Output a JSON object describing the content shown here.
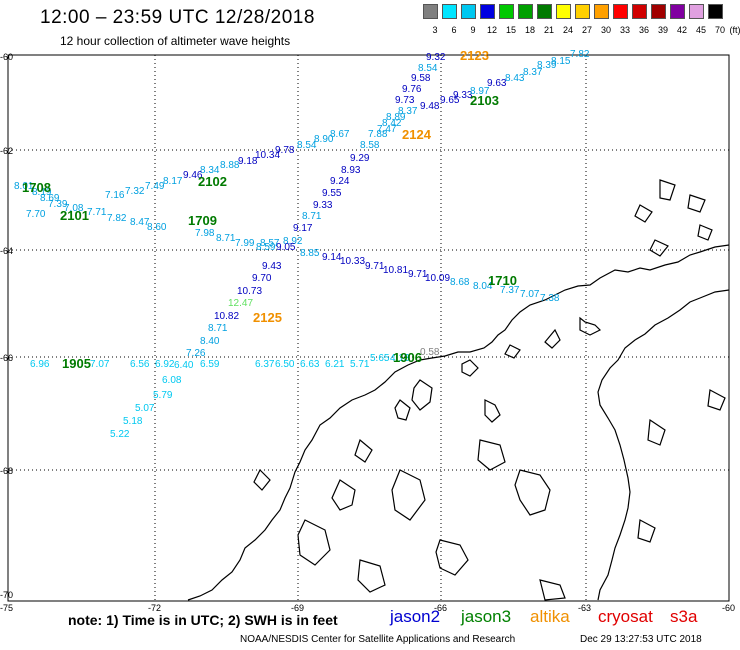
{
  "header": {
    "title": "12:00 – 23:59 UTC 12/28/2018",
    "subtitle": "12 hour collection of altimeter wave heights"
  },
  "color_scale": {
    "labels": [
      "3",
      "6",
      "9",
      "12",
      "15",
      "18",
      "21",
      "24",
      "27",
      "30",
      "33",
      "36",
      "39",
      "42",
      "45",
      "70"
    ],
    "unit": "(ft)",
    "colors": [
      "#808080",
      "#00e5ff",
      "#00c8f0",
      "#0000e0",
      "#00c800",
      "#00a000",
      "#007a00",
      "#ffff00",
      "#ffd000",
      "#ffa000",
      "#ff0000",
      "#d00000",
      "#a00000",
      "#8000a0",
      "#e0a0e0",
      "#000000"
    ]
  },
  "axes": {
    "lon_labels": [
      "-75",
      "-72",
      "-69",
      "-66",
      "-63",
      "-60"
    ],
    "lat_labels": [
      "-60",
      "-62",
      "-64",
      "-66",
      "-68",
      "-70"
    ]
  },
  "passes": [
    {
      "label": "2123",
      "color": "#f09000"
    },
    {
      "label": "2103",
      "color": "#007a00"
    },
    {
      "label": "2124",
      "color": "#f09000"
    },
    {
      "label": "1708",
      "color": "#007a00"
    },
    {
      "label": "2102",
      "color": "#007a00"
    },
    {
      "label": "2101",
      "color": "#007a00"
    },
    {
      "label": "1709",
      "color": "#007a00"
    },
    {
      "label": "1710",
      "color": "#007a00"
    },
    {
      "label": "2125",
      "color": "#f09000"
    },
    {
      "label": "1905",
      "color": "#007a00"
    },
    {
      "label": "1906",
      "color": "#007a00"
    }
  ],
  "observations": [
    {
      "v": "9.32",
      "c": "#0000c0"
    },
    {
      "v": "8.54",
      "c": "#00a0e0"
    },
    {
      "v": "9.58",
      "c": "#0000c0"
    },
    {
      "v": "9.76",
      "c": "#0000c0"
    },
    {
      "v": "9.73",
      "c": "#0000c0"
    },
    {
      "v": "9.48",
      "c": "#0000c0"
    },
    {
      "v": "9.65",
      "c": "#0000c0"
    },
    {
      "v": "9.33",
      "c": "#0000c0"
    },
    {
      "v": "9.63",
      "c": "#0000c0"
    },
    {
      "v": "8.97",
      "c": "#00a0e0"
    },
    {
      "v": "8.43",
      "c": "#00a0e0"
    },
    {
      "v": "8.37",
      "c": "#00a0e0"
    },
    {
      "v": "8.39",
      "c": "#00a0e0"
    },
    {
      "v": "8.15",
      "c": "#00a0e0"
    },
    {
      "v": "7.82",
      "c": "#00a0e0"
    },
    {
      "v": "8.37",
      "c": "#00a0e0"
    },
    {
      "v": "8.89",
      "c": "#00a0e0"
    },
    {
      "v": "8.42",
      "c": "#00a0e0"
    },
    {
      "v": "7.47",
      "c": "#00a0e0"
    },
    {
      "v": "7.88",
      "c": "#00a0e0"
    },
    {
      "v": "8.67",
      "c": "#00a0e0"
    },
    {
      "v": "8.90",
      "c": "#00a0e0"
    },
    {
      "v": "8.54",
      "c": "#00a0e0"
    },
    {
      "v": "8.58",
      "c": "#00a0e0"
    },
    {
      "v": "9.29",
      "c": "#0000c0"
    },
    {
      "v": "8.93",
      "c": "#0000c0"
    },
    {
      "v": "9.24",
      "c": "#0000c0"
    },
    {
      "v": "9.55",
      "c": "#0000c0"
    },
    {
      "v": "9.33",
      "c": "#0000c0"
    },
    {
      "v": "8.71",
      "c": "#00a0e0"
    },
    {
      "v": "9.17",
      "c": "#0000c0"
    },
    {
      "v": "8.92",
      "c": "#00a0e0"
    },
    {
      "v": "9.05",
      "c": "#0000c0"
    },
    {
      "v": "8.57",
      "c": "#00a0e0"
    },
    {
      "v": "8.85",
      "c": "#00a0e0"
    },
    {
      "v": "9.14",
      "c": "#0000c0"
    },
    {
      "v": "10.33",
      "c": "#0000c0"
    },
    {
      "v": "9.71",
      "c": "#0000c0"
    },
    {
      "v": "10.81",
      "c": "#0000c0"
    },
    {
      "v": "9.71",
      "c": "#0000c0"
    },
    {
      "v": "10.09",
      "c": "#0000c0"
    },
    {
      "v": "8.68",
      "c": "#00a0e0"
    },
    {
      "v": "8.04",
      "c": "#00a0e0"
    },
    {
      "v": "7.37",
      "c": "#00a0e0"
    },
    {
      "v": "7.07",
      "c": "#00a0e0"
    },
    {
      "v": "7.38",
      "c": "#00a0e0"
    },
    {
      "v": "9.78",
      "c": "#0000c0"
    },
    {
      "v": "10.34",
      "c": "#0000c0"
    },
    {
      "v": "9.18",
      "c": "#0000c0"
    },
    {
      "v": "8.88",
      "c": "#00a0e0"
    },
    {
      "v": "8.34",
      "c": "#00a0e0"
    },
    {
      "v": "9.46",
      "c": "#0000c0"
    },
    {
      "v": "8.17",
      "c": "#00a0e0"
    },
    {
      "v": "7.49",
      "c": "#00a0e0"
    },
    {
      "v": "7.32",
      "c": "#00a0e0"
    },
    {
      "v": "7.16",
      "c": "#00a0e0"
    },
    {
      "v": "8.01",
      "c": "#00a0e0"
    },
    {
      "v": "8.19",
      "c": "#00a0e0"
    },
    {
      "v": "8.69",
      "c": "#00a0e0"
    },
    {
      "v": "7.39",
      "c": "#00a0e0"
    },
    {
      "v": "7.08",
      "c": "#00a0e0"
    },
    {
      "v": "7.70",
      "c": "#00a0e0"
    },
    {
      "v": "7.71",
      "c": "#00a0e0"
    },
    {
      "v": "7.82",
      "c": "#00a0e0"
    },
    {
      "v": "8.47",
      "c": "#00a0e0"
    },
    {
      "v": "8.60",
      "c": "#00a0e0"
    },
    {
      "v": "7.98",
      "c": "#00a0e0"
    },
    {
      "v": "8.71",
      "c": "#00a0e0"
    },
    {
      "v": "7.99",
      "c": "#00a0e0"
    },
    {
      "v": "8.59",
      "c": "#00a0e0"
    },
    {
      "v": "9.43",
      "c": "#0000c0"
    },
    {
      "v": "9.70",
      "c": "#0000c0"
    },
    {
      "v": "10.73",
      "c": "#0000c0"
    },
    {
      "v": "12.47",
      "c": "#60e060"
    },
    {
      "v": "10.82",
      "c": "#0000c0"
    },
    {
      "v": "8.71",
      "c": "#00a0e0"
    },
    {
      "v": "8.40",
      "c": "#00a0e0"
    },
    {
      "v": "7.26",
      "c": "#00a0e0"
    },
    {
      "v": "6.40",
      "c": "#00c8f0"
    },
    {
      "v": "6.08",
      "c": "#00c8f0"
    },
    {
      "v": "5.79",
      "c": "#00c8f0"
    },
    {
      "v": "5.07",
      "c": "#00c8f0"
    },
    {
      "v": "5.18",
      "c": "#00c8f0"
    },
    {
      "v": "5.22",
      "c": "#00c8f0"
    },
    {
      "v": "6.96",
      "c": "#00c8f0"
    },
    {
      "v": "7.07",
      "c": "#00c8f0"
    },
    {
      "v": "6.56",
      "c": "#00c8f0"
    },
    {
      "v": "6.92",
      "c": "#00c8f0"
    },
    {
      "v": "6.59",
      "c": "#00c8f0"
    },
    {
      "v": "6.37",
      "c": "#00c8f0"
    },
    {
      "v": "6.50",
      "c": "#00c8f0"
    },
    {
      "v": "6.63",
      "c": "#00c8f0"
    },
    {
      "v": "6.21",
      "c": "#00c8f0"
    },
    {
      "v": "5.71",
      "c": "#00c8f0"
    },
    {
      "v": "5.65",
      "c": "#00c8f0"
    },
    {
      "v": "4.13",
      "c": "#00c8f0"
    },
    {
      "v": "0.58",
      "c": "#808080"
    }
  ],
  "footer": {
    "note": "note:  1) Time is in UTC; 2) SWH is in feet",
    "satellites": [
      {
        "name": "jason2",
        "color": "#0000d0"
      },
      {
        "name": "jason3",
        "color": "#008000"
      },
      {
        "name": "altika",
        "color": "#f09000"
      },
      {
        "name": "cryosat",
        "color": "#e00000"
      },
      {
        "name": "s3a",
        "color": "#e00000"
      }
    ],
    "credit": "NOAA/NESDIS Center for Satellite Applications and Research",
    "timestamp": "Dec 29 13:27:53 UTC 2018"
  }
}
